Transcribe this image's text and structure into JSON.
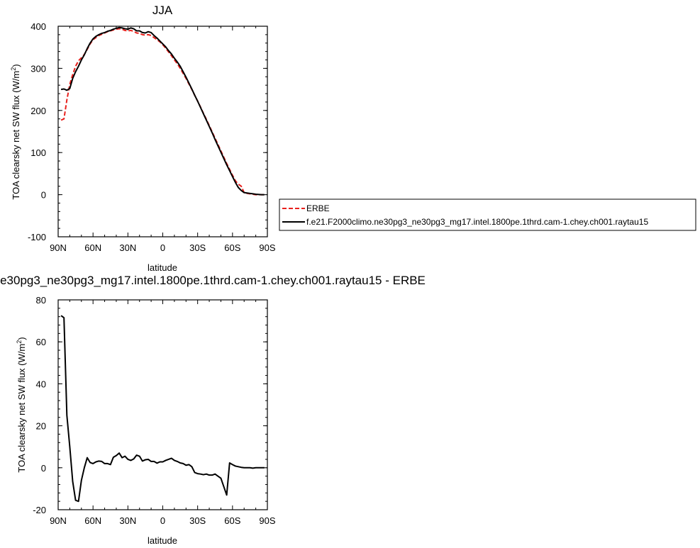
{
  "chart_data": [
    {
      "type": "line",
      "title": "JJA",
      "xlabel": "latitude",
      "ylabel": "TOA clearsky net SW flux (W/m²)",
      "ylabel_main": "TOA clearsky net SW flux (W/m",
      "ylabel_sup": "2",
      "ylabel_end": ")",
      "xlim": [
        -90,
        90
      ],
      "ylim": [
        -100,
        400
      ],
      "x_ticks": [
        -90,
        -60,
        -30,
        0,
        30,
        60,
        90
      ],
      "x_tick_labels": [
        "90N",
        "60N",
        "30N",
        "0",
        "30S",
        "60S",
        "90S"
      ],
      "y_ticks": [
        -100,
        0,
        100,
        200,
        300,
        400
      ],
      "y_tick_labels": [
        "-100",
        "0",
        "100",
        "200",
        "300",
        "400"
      ],
      "legend_position": "right",
      "series": [
        {
          "name": "ERBE",
          "color": "#e8211d",
          "dash": "dashed",
          "points": [
            [
              -87.5,
              177
            ],
            [
              -85,
              180
            ],
            [
              -82.5,
              225
            ],
            [
              -80,
              262
            ],
            [
              -77.5,
              285
            ],
            [
              -75,
              305
            ],
            [
              -72.5,
              318
            ],
            [
              -70,
              325
            ],
            [
              -67.5,
              333
            ],
            [
              -65,
              345
            ],
            [
              -62.5,
              358
            ],
            [
              -60,
              368
            ],
            [
              -57.5,
              373
            ],
            [
              -55,
              378
            ],
            [
              -52.5,
              381
            ],
            [
              -50,
              384
            ],
            [
              -47.5,
              387
            ],
            [
              -45,
              389
            ],
            [
              -42.5,
              391
            ],
            [
              -40,
              393
            ],
            [
              -37.5,
              394
            ],
            [
              -35,
              393
            ],
            [
              -32.5,
              390
            ],
            [
              -30,
              389
            ],
            [
              -27.5,
              390
            ],
            [
              -25,
              388
            ],
            [
              -22.5,
              384
            ],
            [
              -20,
              383
            ],
            [
              -17.5,
              380
            ],
            [
              -15,
              379
            ],
            [
              -12.5,
              380
            ],
            [
              -10,
              378
            ],
            [
              -7.5,
              373
            ],
            [
              -5,
              368
            ],
            [
              -2.5,
              363
            ],
            [
              0,
              356
            ],
            [
              2.5,
              348
            ],
            [
              5,
              339
            ],
            [
              7.5,
              330
            ],
            [
              10,
              320
            ],
            [
              12.5,
              311
            ],
            [
              15,
              300
            ],
            [
              17.5,
              288
            ],
            [
              20,
              276
            ],
            [
              22.5,
              263
            ],
            [
              25,
              250
            ],
            [
              27.5,
              236
            ],
            [
              30,
              222
            ],
            [
              32.5,
              208
            ],
            [
              35,
              193
            ],
            [
              37.5,
              179
            ],
            [
              40,
              164
            ],
            [
              42.5,
              149
            ],
            [
              45,
              134
            ],
            [
              47.5,
              119
            ],
            [
              50,
              104
            ],
            [
              52.5,
              89
            ],
            [
              55,
              74
            ],
            [
              57.5,
              60
            ],
            [
              60,
              46
            ],
            [
              62.5,
              33
            ],
            [
              65,
              25
            ],
            [
              67.5,
              20
            ],
            [
              70,
              5
            ],
            [
              72.5,
              3
            ],
            [
              75,
              2
            ],
            [
              77.5,
              1
            ],
            [
              80,
              0
            ],
            [
              85,
              0
            ],
            [
              87.5,
              0
            ]
          ]
        },
        {
          "name": "f.e21.F2000climo.ne30pg3_ne30pg3_mg17.intel.1800pe.1thrd.cam-1.chey.ch001.raytau15",
          "color": "#000000",
          "dash": "solid",
          "points": [
            [
              -87.5,
              250
            ],
            [
              -85,
              251
            ],
            [
              -82.5,
              248
            ],
            [
              -80,
              252
            ],
            [
              -77.5,
              276
            ],
            [
              -75,
              292
            ],
            [
              -72.5,
              305
            ],
            [
              -70,
              320
            ],
            [
              -67.5,
              332
            ],
            [
              -65,
              347
            ],
            [
              -62.5,
              360
            ],
            [
              -60,
              370
            ],
            [
              -57.5,
              376
            ],
            [
              -55,
              380
            ],
            [
              -52.5,
              383
            ],
            [
              -50,
              385
            ],
            [
              -47.5,
              388
            ],
            [
              -45,
              390
            ],
            [
              -42.5,
              393
            ],
            [
              -40,
              395
            ],
            [
              -37.5,
              397
            ],
            [
              -35,
              396
            ],
            [
              -32.5,
              394
            ],
            [
              -30,
              393
            ],
            [
              -27.5,
              396
            ],
            [
              -25,
              394
            ],
            [
              -22.5,
              389
            ],
            [
              -20,
              389
            ],
            [
              -17.5,
              385
            ],
            [
              -15,
              384
            ],
            [
              -12.5,
              387
            ],
            [
              -10,
              385
            ],
            [
              -7.5,
              378
            ],
            [
              -5,
              372
            ],
            [
              -2.5,
              365
            ],
            [
              0,
              358
            ],
            [
              2.5,
              351
            ],
            [
              5,
              342
            ],
            [
              7.5,
              334
            ],
            [
              10,
              324
            ],
            [
              12.5,
              315
            ],
            [
              15,
              305
            ],
            [
              17.5,
              292
            ],
            [
              20,
              279
            ],
            [
              22.5,
              265
            ],
            [
              25,
              251
            ],
            [
              27.5,
              236
            ],
            [
              30,
              222
            ],
            [
              32.5,
              207
            ],
            [
              35,
              192
            ],
            [
              37.5,
              177
            ],
            [
              40,
              162
            ],
            [
              42.5,
              147
            ],
            [
              45,
              131
            ],
            [
              47.5,
              116
            ],
            [
              50,
              101
            ],
            [
              52.5,
              86
            ],
            [
              55,
              71
            ],
            [
              57.5,
              57
            ],
            [
              60,
              43
            ],
            [
              62.5,
              29
            ],
            [
              65,
              17
            ],
            [
              67.5,
              10
            ],
            [
              70,
              5
            ],
            [
              72.5,
              4
            ],
            [
              75,
              3
            ],
            [
              77.5,
              2
            ],
            [
              80,
              1
            ],
            [
              85,
              0
            ],
            [
              87.5,
              0
            ]
          ]
        }
      ]
    },
    {
      "type": "line",
      "title": "e30pg3_ne30pg3_mg17.intel.1800pe.1thrd.cam-1.chey.ch001.raytau15 - ERBE",
      "xlabel": "latitude",
      "ylabel": "TOA clearsky net SW flux (W/m²)",
      "ylabel_main": "TOA clearsky net SW flux (W/m",
      "ylabel_sup": "2",
      "ylabel_end": ")",
      "xlim": [
        -90,
        90
      ],
      "ylim": [
        -20,
        80
      ],
      "x_ticks": [
        -90,
        -60,
        -30,
        0,
        30,
        60,
        90
      ],
      "x_tick_labels": [
        "90N",
        "60N",
        "30N",
        "0",
        "30S",
        "60S",
        "90S"
      ],
      "y_ticks": [
        -20,
        0,
        20,
        40,
        60,
        80
      ],
      "y_tick_labels": [
        "-20",
        "0",
        "20",
        "40",
        "60",
        "80"
      ],
      "series": [
        {
          "color": "#000000",
          "dash": "solid",
          "points": [
            [
              -87.5,
              72.5
            ],
            [
              -85,
              71.5
            ],
            [
              -82.5,
              25
            ],
            [
              -80,
              10
            ],
            [
              -77.5,
              -6.5
            ],
            [
              -75,
              -15.5
            ],
            [
              -72.5,
              -16
            ],
            [
              -70,
              -6
            ],
            [
              -67.5,
              0
            ],
            [
              -65,
              4.8
            ],
            [
              -62.5,
              2.5
            ],
            [
              -60,
              2
            ],
            [
              -57.5,
              2.8
            ],
            [
              -55,
              3.2
            ],
            [
              -52.5,
              3
            ],
            [
              -50,
              2
            ],
            [
              -47.5,
              2
            ],
            [
              -45,
              1.5
            ],
            [
              -42.5,
              5
            ],
            [
              -40,
              5.8
            ],
            [
              -37.5,
              7
            ],
            [
              -35,
              4.8
            ],
            [
              -32.5,
              5.5
            ],
            [
              -30,
              4
            ],
            [
              -27.5,
              3.5
            ],
            [
              -25,
              4.2
            ],
            [
              -22.5,
              6
            ],
            [
              -20,
              5.5
            ],
            [
              -17.5,
              3.2
            ],
            [
              -15,
              3.8
            ],
            [
              -12.5,
              4
            ],
            [
              -10,
              3
            ],
            [
              -7.5,
              3
            ],
            [
              -5,
              2.2
            ],
            [
              -2.5,
              2.8
            ],
            [
              0,
              2.8
            ],
            [
              2.5,
              3.5
            ],
            [
              5,
              4
            ],
            [
              7.5,
              4.5
            ],
            [
              10,
              3.5
            ],
            [
              12.5,
              3
            ],
            [
              15,
              2.3
            ],
            [
              17.5,
              2
            ],
            [
              20,
              1.2
            ],
            [
              22.5,
              1.5
            ],
            [
              25,
              0.5
            ],
            [
              27.5,
              -2.3
            ],
            [
              30,
              -2.8
            ],
            [
              32.5,
              -3
            ],
            [
              35,
              -3.3
            ],
            [
              37.5,
              -3
            ],
            [
              40,
              -3.5
            ],
            [
              42.5,
              -3.5
            ],
            [
              45,
              -3
            ],
            [
              47.5,
              -4
            ],
            [
              50,
              -5
            ],
            [
              52.5,
              -9
            ],
            [
              55,
              -13
            ],
            [
              57.5,
              2.3
            ],
            [
              60,
              1.5
            ],
            [
              62.5,
              0.8
            ],
            [
              65,
              0.5
            ],
            [
              67.5,
              0.2
            ],
            [
              70,
              0
            ],
            [
              75,
              0
            ],
            [
              77.5,
              -0.2
            ],
            [
              80,
              0
            ],
            [
              85,
              0
            ],
            [
              87.5,
              0
            ]
          ]
        }
      ]
    }
  ]
}
